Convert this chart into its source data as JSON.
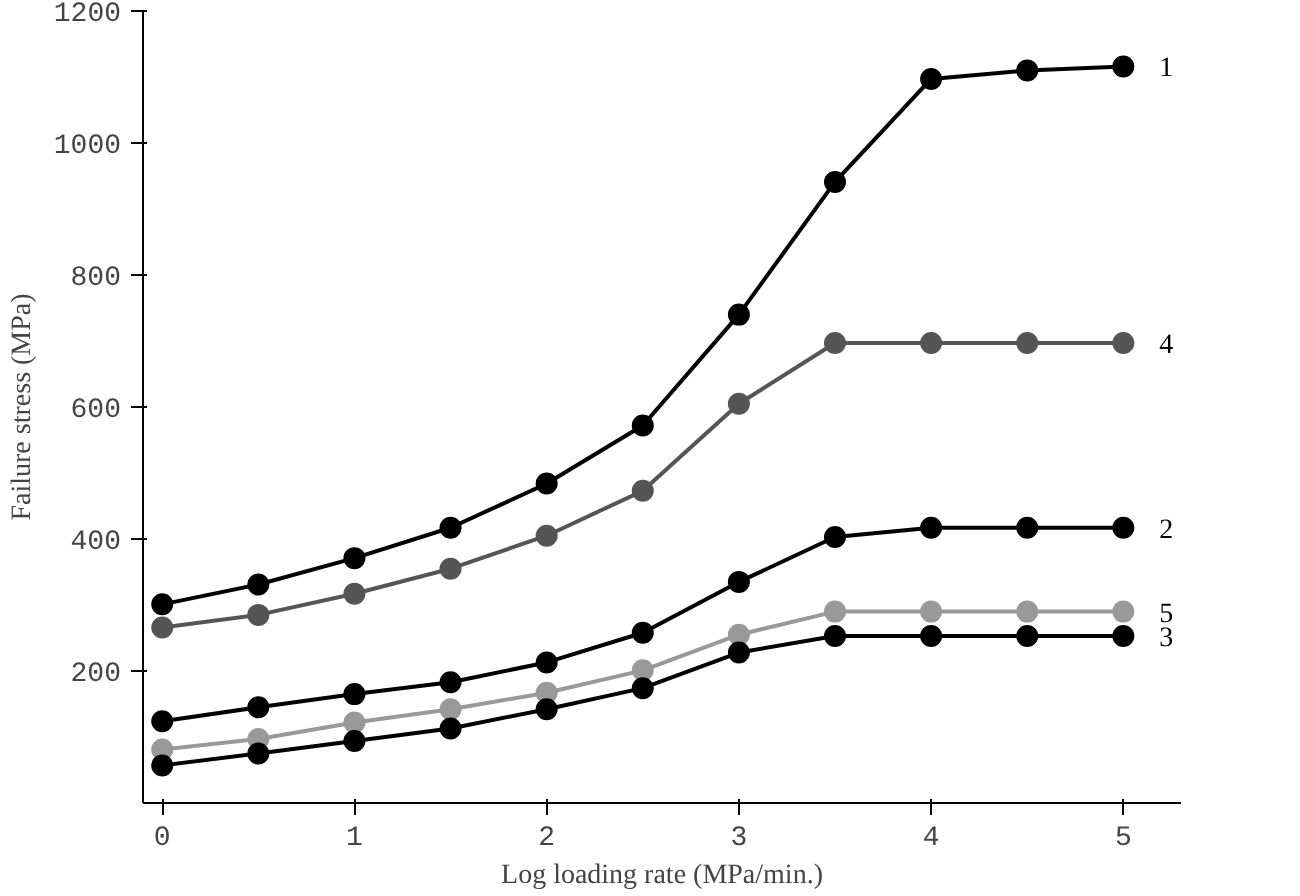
{
  "chart_data": {
    "type": "line",
    "xlabel": "Log loading rate (MPa/min.)",
    "ylabel": "Failure stress (MPa)",
    "x": [
      0,
      0.5,
      1,
      1.5,
      2,
      2.5,
      3,
      3.5,
      4,
      4.5,
      5
    ],
    "xlim": [
      -0.1,
      5.3
    ],
    "xticks": [
      0,
      1,
      2,
      3,
      4,
      5
    ],
    "ylim": [
      0,
      1200
    ],
    "yticks": [
      200,
      400,
      600,
      800,
      1000,
      1200
    ],
    "grid": false,
    "marker": "circle",
    "line_style": "solid",
    "series": [
      {
        "name": "1",
        "color": "#000000",
        "values": [
          301,
          331,
          371,
          417,
          484,
          572,
          740,
          941,
          1097,
          1110,
          1116
        ]
      },
      {
        "name": "4",
        "color": "#555555",
        "values": [
          266,
          285,
          317,
          355,
          405,
          473,
          605,
          697,
          697,
          697,
          697
        ]
      },
      {
        "name": "2",
        "color": "#000000",
        "values": [
          124,
          145,
          165,
          183,
          213,
          258,
          335,
          403,
          417,
          417,
          417
        ]
      },
      {
        "name": "5",
        "color": "#999999",
        "values": [
          81,
          97,
          122,
          142,
          167,
          201,
          255,
          290,
          290,
          290,
          290
        ]
      },
      {
        "name": "3",
        "color": "#000000",
        "values": [
          57,
          75,
          94,
          113,
          142,
          174,
          228,
          253,
          253,
          253,
          253
        ]
      }
    ]
  }
}
